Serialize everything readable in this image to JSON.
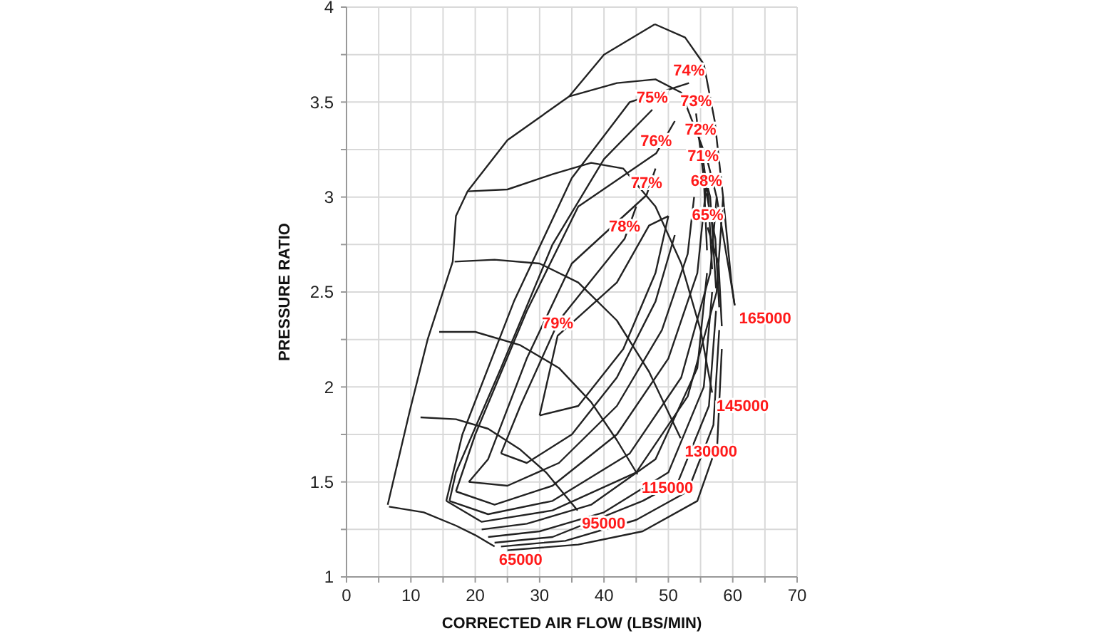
{
  "chart_data": {
    "type": "line",
    "xlabel": "CORRECTED AIR FLOW (LBS/MIN)",
    "ylabel": "PRESSURE RATIO",
    "xlim": [
      0,
      70
    ],
    "ylim": [
      1,
      4
    ],
    "xticks": [
      0,
      {
        "value": 5,
        "label": null
      },
      10,
      {
        "value": 15,
        "label": null
      },
      20,
      {
        "value": 25,
        "label": null
      },
      30,
      {
        "value": 35,
        "label": null
      },
      40,
      {
        "value": 45,
        "label": null
      },
      50,
      {
        "value": 55,
        "label": null
      },
      60,
      {
        "value": 65,
        "label": null
      },
      70
    ],
    "yticks": [
      1,
      {
        "value": 1.25,
        "label": null
      },
      1.5,
      {
        "value": 1.75,
        "label": null
      },
      2,
      {
        "value": 2.25,
        "label": null
      },
      2.5,
      {
        "value": 2.75,
        "label": null
      },
      3,
      {
        "value": 3.25,
        "label": null
      },
      3.5,
      {
        "value": 3.75,
        "label": null
      },
      4
    ],
    "grid": true,
    "marker": "none",
    "line_style": "solid",
    "series": [
      {
        "color": "#222222",
        "x": [
          6.4,
          9.8,
          12.6,
          16.5,
          17,
          18.8,
          25,
          34.6,
          40,
          47.9
        ],
        "values": [
          1.38,
          1.87,
          2.25,
          2.66,
          2.9,
          3.03,
          3.3,
          3.53,
          3.75,
          3.91
        ]
      },
      {
        "color": "#222222",
        "x": [
          47.9,
          52.6,
          55.5,
          57.2,
          58.5,
          59.8,
          60.3
        ],
        "values": [
          3.91,
          3.84,
          3.7,
          3.4,
          3.0,
          2.55,
          2.43
        ]
      },
      {
        "color": "#222222",
        "x": [
          6.6,
          12,
          17,
          20,
          23
        ],
        "values": [
          1.37,
          1.34,
          1.27,
          1.22,
          1.16
        ]
      },
      {
        "color": "#222222",
        "x": [
          11.5,
          17,
          22,
          27,
          31,
          35.9
        ],
        "values": [
          1.84,
          1.83,
          1.78,
          1.67,
          1.55,
          1.35
        ]
      },
      {
        "color": "#222222",
        "x": [
          14.4,
          20,
          27,
          33,
          38,
          42,
          45.2
        ],
        "values": [
          2.29,
          2.29,
          2.22,
          2.1,
          1.92,
          1.72,
          1.54
        ]
      },
      {
        "color": "#222222",
        "x": [
          16.8,
          23,
          30,
          36,
          42,
          47,
          51.9
        ],
        "values": [
          2.66,
          2.67,
          2.65,
          2.55,
          2.35,
          2.08,
          1.73
        ]
      },
      {
        "color": "#222222",
        "x": [
          18.9,
          25,
          32,
          38,
          43,
          48,
          52,
          55,
          56.8
        ],
        "values": [
          3.03,
          3.04,
          3.12,
          3.18,
          3.15,
          2.95,
          2.65,
          2.3,
          1.97
        ]
      },
      {
        "color": "#222222",
        "x": [
          34.6,
          42,
          48,
          52,
          56,
          57.5,
          59.5,
          60.3
        ],
        "values": [
          3.53,
          3.6,
          3.62,
          3.55,
          3.2,
          3.0,
          2.6,
          2.43
        ]
      },
      {
        "color": "#222222",
        "x": [
          30,
          36,
          43,
          48,
          50
        ],
        "values": [
          1.85,
          1.9,
          2.2,
          2.6,
          2.9
        ]
      },
      {
        "color": "#222222",
        "x": [
          30,
          32.8,
          42,
          47,
          50
        ],
        "values": [
          1.85,
          2.27,
          2.55,
          2.85,
          2.9
        ]
      },
      {
        "color": "#222222",
        "x": [
          24,
          27,
          33,
          43.2,
          45
        ],
        "values": [
          1.65,
          1.9,
          2.35,
          2.78,
          2.95
        ]
      },
      {
        "color": "#222222",
        "x": [
          24,
          28,
          35,
          42,
          48,
          51
        ],
        "values": [
          1.65,
          1.6,
          1.75,
          2.05,
          2.45,
          2.8
        ]
      },
      {
        "color": "#222222",
        "x": [
          19,
          22,
          28,
          35,
          46.6,
          48
        ],
        "values": [
          1.5,
          1.62,
          2.15,
          2.65,
          3.01,
          3.15
        ]
      },
      {
        "color": "#222222",
        "x": [
          19,
          25,
          33,
          42,
          49,
          53,
          54
        ],
        "values": [
          1.5,
          1.48,
          1.6,
          1.9,
          2.3,
          2.7,
          3.0
        ]
      },
      {
        "color": "#222222",
        "x": [
          17,
          20,
          28,
          36,
          48.1,
          51
        ],
        "values": [
          1.45,
          1.75,
          2.4,
          2.95,
          3.23,
          3.4
        ]
      },
      {
        "color": "#222222",
        "x": [
          17,
          23,
          32,
          42,
          50,
          54.5,
          56
        ],
        "values": [
          1.45,
          1.38,
          1.48,
          1.75,
          2.15,
          2.6,
          3.1
        ]
      },
      {
        "color": "#222222",
        "x": [
          16,
          17,
          24,
          32,
          40,
          47.5
        ],
        "values": [
          1.4,
          1.55,
          2.1,
          2.75,
          3.2,
          3.46
        ]
      },
      {
        "color": "#222222",
        "x": [
          16,
          22,
          32,
          44,
          52,
          56.5,
          57.5
        ],
        "values": [
          1.4,
          1.33,
          1.4,
          1.65,
          2.05,
          2.6,
          3.0
        ]
      },
      {
        "color": "#222222",
        "x": [
          15.5,
          18,
          26,
          35,
          44,
          53.2
        ],
        "values": [
          1.4,
          1.75,
          2.45,
          3.1,
          3.5,
          3.6
        ]
      },
      {
        "color": "#222222",
        "x": [
          15.5,
          21,
          32,
          45,
          53,
          57.5,
          58.5
        ],
        "values": [
          1.4,
          1.29,
          1.35,
          1.55,
          1.95,
          2.5,
          3.0
        ]
      },
      {
        "color": "#222222",
        "x": [
          54.3,
          55.5,
          56
        ],
        "values": [
          3.44,
          3.1,
          2.72
        ]
      },
      {
        "color": "#222222",
        "x": [
          21,
          28,
          38,
          48,
          54.5,
          56
        ],
        "values": [
          1.25,
          1.28,
          1.38,
          1.62,
          2.1,
          2.6
        ]
      },
      {
        "color": "#222222",
        "x": [
          55,
          56.2,
          56.8
        ],
        "values": [
          3.29,
          3.0,
          2.62
        ]
      },
      {
        "color": "#222222",
        "x": [
          22,
          30,
          40,
          50,
          55.5,
          56.8
        ],
        "values": [
          1.21,
          1.24,
          1.34,
          1.55,
          2.0,
          2.5
        ]
      },
      {
        "color": "#222222",
        "x": [
          55.4,
          56.5,
          57.4
        ],
        "values": [
          3.15,
          3.0,
          2.52
        ]
      },
      {
        "color": "#222222",
        "x": [
          23,
          32,
          46,
          51.5,
          56.3,
          57.4
        ],
        "values": [
          1.18,
          1.21,
          1.4,
          1.5,
          1.9,
          2.4
        ]
      },
      {
        "color": "#222222",
        "x": [
          55.9,
          57.3,
          57.9
        ],
        "values": [
          3.02,
          2.78,
          2.42
        ]
      },
      {
        "color": "#222222",
        "x": [
          24,
          34,
          45,
          53,
          57,
          57.9
        ],
        "values": [
          1.16,
          1.19,
          1.3,
          1.45,
          1.8,
          2.3
        ]
      },
      {
        "color": "#222222",
        "x": [
          56.1,
          57.8,
          58.3
        ],
        "values": [
          2.84,
          2.65,
          2.32
        ]
      },
      {
        "color": "#222222",
        "x": [
          25,
          36,
          46,
          54.5,
          57.6,
          58.3
        ],
        "values": [
          1.14,
          1.17,
          1.24,
          1.4,
          1.7,
          2.2
        ]
      }
    ],
    "annotations": [
      {
        "text": "74%",
        "x": 53.2,
        "y": 3.6
      },
      {
        "text": "75%",
        "x": 47.5,
        "y": 3.46
      },
      {
        "text": "73%",
        "x": 54.3,
        "y": 3.44
      },
      {
        "text": "72%",
        "x": 55,
        "y": 3.29
      },
      {
        "text": "76%",
        "x": 48.1,
        "y": 3.23
      },
      {
        "text": "71%",
        "x": 55.4,
        "y": 3.15
      },
      {
        "text": "77%",
        "x": 46.6,
        "y": 3.01
      },
      {
        "text": "68%",
        "x": 55.9,
        "y": 3.02
      },
      {
        "text": "65%",
        "x": 56.1,
        "y": 2.84
      },
      {
        "text": "78%",
        "x": 43.2,
        "y": 2.78
      },
      {
        "text": "79%",
        "x": 32.8,
        "y": 2.27
      },
      {
        "text": "165000",
        "x": 60.3,
        "y": 2.43
      },
      {
        "text": "145000",
        "x": 56.8,
        "y": 1.97
      },
      {
        "text": "130000",
        "x": 51.9,
        "y": 1.73
      },
      {
        "text": "115000",
        "x": 45.2,
        "y": 1.54
      },
      {
        "text": "95000",
        "x": 35.9,
        "y": 1.35
      },
      {
        "text": "65000",
        "x": 23,
        "y": 1.16
      }
    ]
  }
}
